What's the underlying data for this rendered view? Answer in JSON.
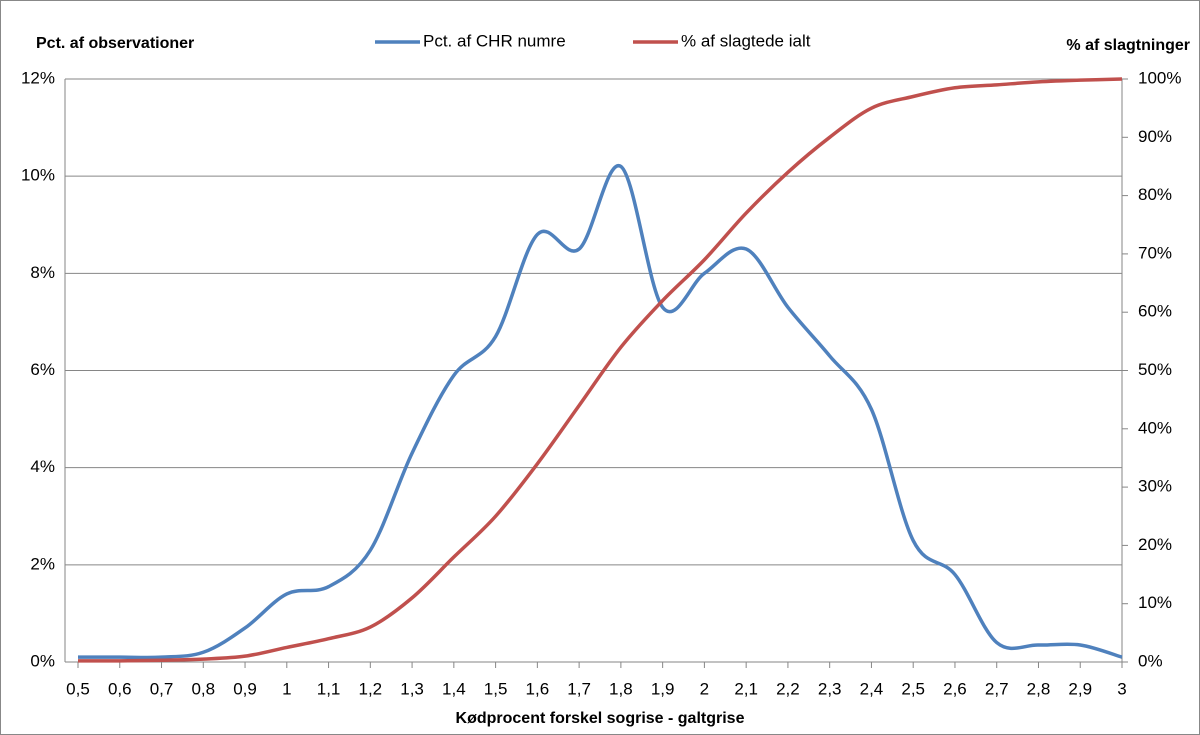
{
  "chart_data": {
    "type": "line",
    "y_label": "Pct. af observationer",
    "y2_label": "% af slagtninger",
    "x_label": "Kødprocent forskel sogrise - galtgrise",
    "categories": [
      "0,5",
      "0,6",
      "0,7",
      "0,8",
      "0,9",
      "1",
      "1,1",
      "1,2",
      "1,3",
      "1,4",
      "1,5",
      "1,6",
      "1,7",
      "1,8",
      "1,9",
      "2",
      "2,1",
      "2,2",
      "2,3",
      "2,4",
      "2,5",
      "2,6",
      "2,7",
      "2,8",
      "2,9",
      "3"
    ],
    "series": [
      {
        "name": "Pct. af CHR numre",
        "color": "#4f81bd",
        "axis": "y",
        "values": [
          0.1,
          0.1,
          0.1,
          0.2,
          0.7,
          1.4,
          1.55,
          2.3,
          4.3,
          5.9,
          6.7,
          8.8,
          8.5,
          10.2,
          7.3,
          8.0,
          8.5,
          7.3,
          6.3,
          5.2,
          2.5,
          1.8,
          0.4,
          0.35,
          0.35,
          0.1
        ]
      },
      {
        "name": "% af slagtede ialt",
        "color": "#c0504d",
        "axis": "y2",
        "values": [
          0.2,
          0.2,
          0.3,
          0.5,
          1,
          2.5,
          4,
          6,
          11,
          18,
          25,
          34,
          44,
          54,
          62,
          69,
          77,
          84,
          90,
          95,
          97,
          98.5,
          99,
          99.5,
          99.8,
          100
        ]
      }
    ],
    "ylim": [
      0,
      12
    ],
    "yticks": [
      {
        "value": 0,
        "label": "0%"
      },
      {
        "value": 2,
        "label": "2%"
      },
      {
        "value": 4,
        "label": "4%"
      },
      {
        "value": 6,
        "label": "6%"
      },
      {
        "value": 8,
        "label": "8%"
      },
      {
        "value": 10,
        "label": "10%"
      },
      {
        "value": 12,
        "label": "12%"
      }
    ],
    "y2lim": [
      0,
      100
    ],
    "y2ticks": [
      {
        "value": 0,
        "label": "0%"
      },
      {
        "value": 10,
        "label": "10%"
      },
      {
        "value": 20,
        "label": "20%"
      },
      {
        "value": 30,
        "label": "30%"
      },
      {
        "value": 40,
        "label": "40%"
      },
      {
        "value": 50,
        "label": "50%"
      },
      {
        "value": 60,
        "label": "60%"
      },
      {
        "value": 70,
        "label": "70%"
      },
      {
        "value": 80,
        "label": "80%"
      },
      {
        "value": 90,
        "label": "90%"
      },
      {
        "value": 100,
        "label": "100%"
      }
    ],
    "grid": true,
    "legend": "top"
  }
}
